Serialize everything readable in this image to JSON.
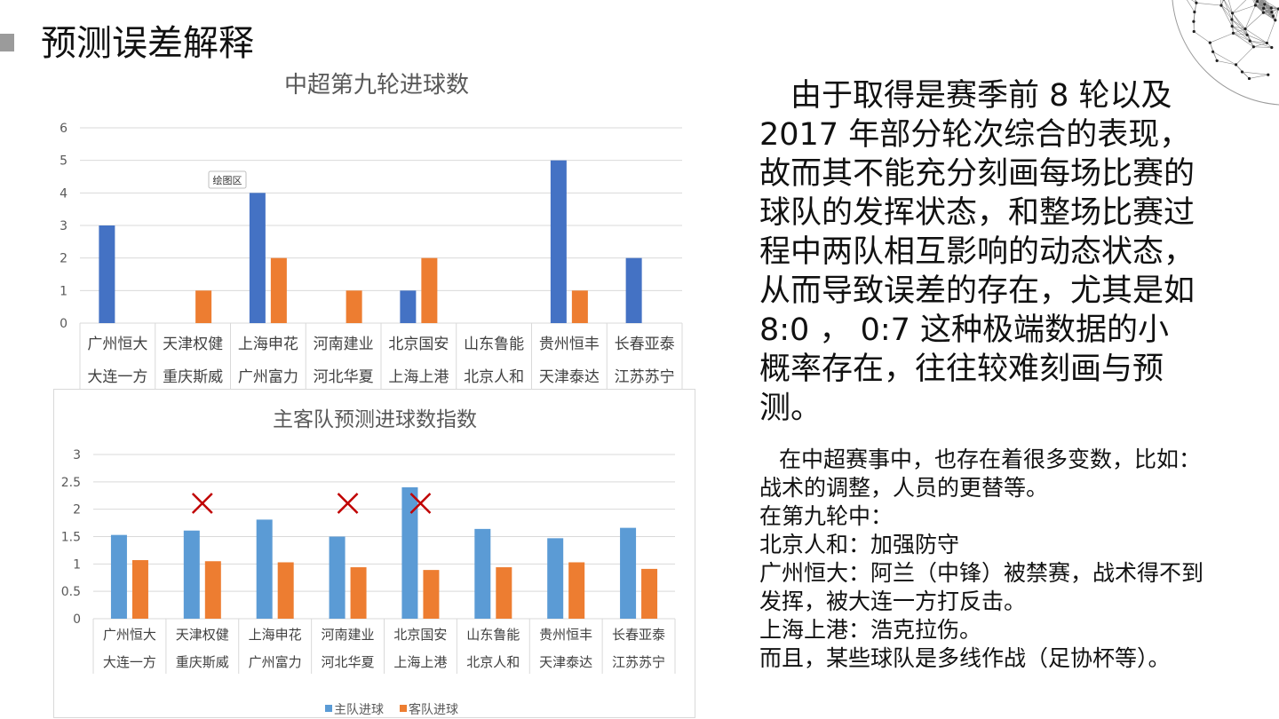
{
  "slide": {
    "title": "预测误差解释"
  },
  "chart_data": [
    {
      "type": "bar",
      "title": "中超第九轮进球数",
      "categories": [
        [
          "广州恒大",
          "大连一方"
        ],
        [
          "天津权健",
          "重庆斯威"
        ],
        [
          "上海申花",
          "广州富力"
        ],
        [
          "河南建业",
          "河北华夏"
        ],
        [
          "北京国安",
          "上海上港"
        ],
        [
          "山东鲁能",
          "北京人和"
        ],
        [
          "贵州恒丰",
          "天津泰达"
        ],
        [
          "长春亚泰",
          "江苏苏宁"
        ]
      ],
      "series": [
        {
          "values": [
            3,
            0,
            4,
            0,
            1,
            0,
            5,
            2
          ],
          "color": "#4472c4"
        },
        {
          "values": [
            0,
            1,
            2,
            1,
            2,
            0,
            1,
            0
          ],
          "color": "#ed7d31"
        }
      ],
      "ylim": [
        0,
        6
      ],
      "yticks": [
        "0",
        "1",
        "2",
        "3",
        "4",
        "5",
        "6"
      ],
      "grid": true,
      "tooltip": "绘图区"
    },
    {
      "type": "bar",
      "title": "主客队预测进球数指数",
      "categories": [
        [
          "广州恒大",
          "大连一方"
        ],
        [
          "天津权健",
          "重庆斯威"
        ],
        [
          "上海申花",
          "广州富力"
        ],
        [
          "河南建业",
          "河北华夏"
        ],
        [
          "北京国安",
          "上海上港"
        ],
        [
          "山东鲁能",
          "北京人和"
        ],
        [
          "贵州恒丰",
          "天津泰达"
        ],
        [
          "长春亚泰",
          "江苏苏宁"
        ]
      ],
      "series": [
        {
          "name": "主队进球",
          "values": [
            1.53,
            1.61,
            1.81,
            1.5,
            2.4,
            1.64,
            1.47,
            1.66
          ],
          "color": "#5b9bd5"
        },
        {
          "name": "客队进球",
          "values": [
            1.07,
            1.05,
            1.03,
            0.94,
            0.89,
            0.94,
            1.03,
            0.91
          ],
          "color": "#ed7d31"
        }
      ],
      "ylim": [
        0,
        3
      ],
      "yticks": [
        "0",
        "0.5",
        "1",
        "1.5",
        "2",
        "2.5",
        "3"
      ],
      "grid": true,
      "legend": "bottom",
      "cross_marks_on_categories": [
        1,
        3,
        4
      ],
      "cross_color": "#c00000"
    }
  ],
  "text": {
    "paragraph": "由于取得是赛季前 8 轮以及2017 年部分轮次综合的表现，故而其不能充分刻画每场比赛的球队的发挥状态，和整场比赛过程中两队相互影响的动态状态，从而导致误差的存在，尤其是如 8:0 ， 0:7 这种极端数据的小概率存在，往往较难刻画与预测。",
    "notes": [
      "在中超赛事中，也存在着很多变数，比如：战术的调整，人员的更替等。",
      "在第九轮中：",
      "北京人和：加强防守",
      "广州恒大：阿兰（中锋）被禁赛，战术得不到发挥，被大连一方打反击。",
      "上海上港：浩克拉伤。",
      "而且，某些球队是多线作战（足协杯等）。"
    ]
  }
}
